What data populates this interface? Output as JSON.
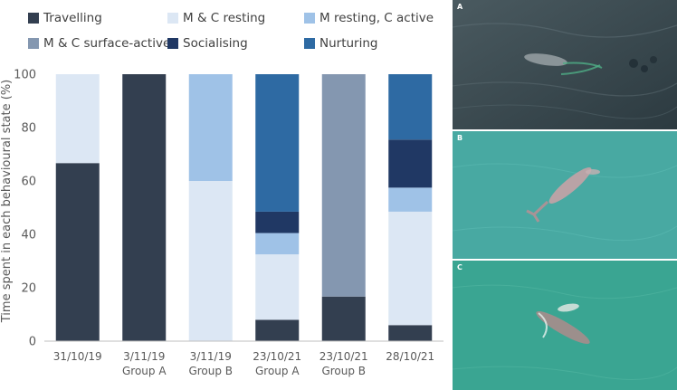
{
  "chart_data": {
    "type": "bar",
    "stacked": true,
    "ylabel": "Time spent in each behavioural state (%)",
    "xlabel": "",
    "ylim": [
      0,
      100
    ],
    "yticks": [
      0,
      20,
      40,
      60,
      80,
      100
    ],
    "grid": false,
    "legend_position": "top",
    "categories": [
      [
        "31/10/19"
      ],
      [
        "3/11/19",
        "Group A"
      ],
      [
        "3/11/19",
        "Group B"
      ],
      [
        "23/10/21",
        "Group A"
      ],
      [
        "23/10/21",
        "Group B"
      ],
      [
        "28/10/21"
      ]
    ],
    "series": [
      {
        "name": "Travelling",
        "color": "#333f50",
        "values": [
          66.7,
          100,
          0,
          8,
          16.7,
          6
        ]
      },
      {
        "name": "M & C resting",
        "color": "#dce7f4",
        "values": [
          33.3,
          0,
          60,
          24.5,
          0,
          42.5
        ]
      },
      {
        "name": "M resting, C active",
        "color": "#9fc2e7",
        "values": [
          0,
          0,
          40,
          8,
          0,
          9
        ]
      },
      {
        "name": "M & C surface-active",
        "color": "#8497b0",
        "values": [
          0,
          0,
          0,
          0,
          83.3,
          0
        ]
      },
      {
        "name": "Socialising",
        "color": "#203864",
        "values": [
          0,
          0,
          0,
          8,
          0,
          18
        ]
      },
      {
        "name": "Nurturing",
        "color": "#2e6aa3",
        "values": [
          0,
          0,
          0,
          51.5,
          0,
          24.5
        ]
      }
    ]
  },
  "photos": [
    {
      "label": "A",
      "scene": "dark-water"
    },
    {
      "label": "B",
      "scene": "turquoise-water"
    },
    {
      "label": "C",
      "scene": "green-water"
    }
  ]
}
